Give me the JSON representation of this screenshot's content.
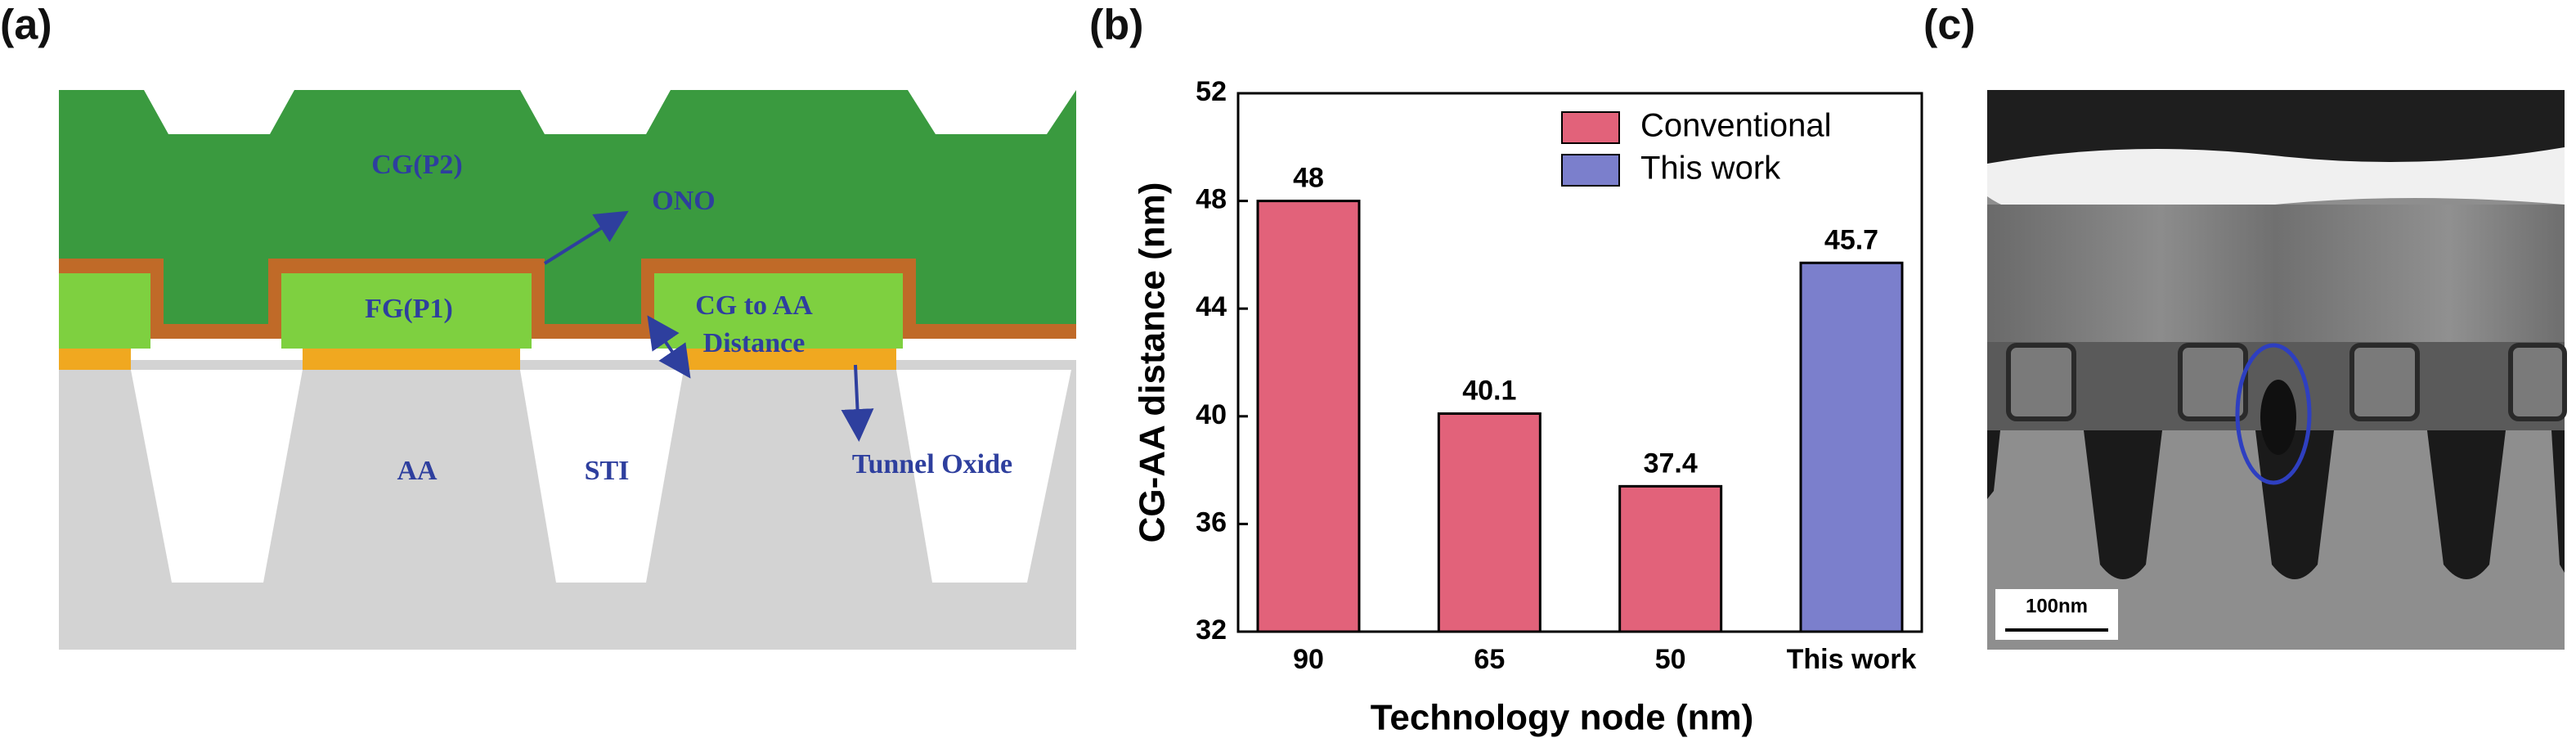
{
  "panel_labels": [
    "(a)",
    "(b)",
    "(c)"
  ],
  "diagram": {
    "labels": [
      "CG(P2)",
      "ONO",
      "FG(P1)",
      "CG to AA",
      "Distance",
      "AA",
      "STI",
      "Tunnel Oxide"
    ]
  },
  "chart_data": {
    "type": "bar",
    "x_label": "Technology node (nm)",
    "y_label": "CG-AA distance (nm)",
    "categories": [
      "90",
      "65",
      "50",
      "This work"
    ],
    "series": [
      {
        "name": "Conventional",
        "color": "#e2627a",
        "values": [
          48,
          40.1,
          37.4,
          null
        ]
      },
      {
        "name": "This work",
        "color": "#7b7fcc",
        "values": [
          null,
          null,
          null,
          45.7
        ]
      }
    ],
    "ylim": [
      32,
      52
    ],
    "yticks": [
      32,
      36,
      40,
      44,
      48,
      52
    ],
    "grid": false,
    "legend": "upper right"
  },
  "micrograph": {
    "scale_bar": "100nm"
  }
}
